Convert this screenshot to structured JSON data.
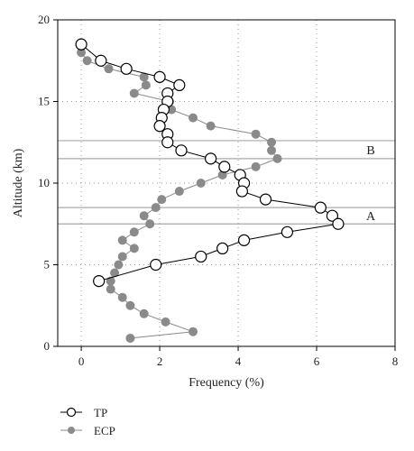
{
  "chart_data": {
    "type": "line",
    "xlabel": "Frequency (%)",
    "ylabel": "Altitude (km)",
    "xlim": [
      -0.6,
      8
    ],
    "ylim": [
      0,
      20
    ],
    "xticks": [
      "0",
      "2",
      "4",
      "6",
      "8"
    ],
    "yticks": [
      "0",
      "5",
      "10",
      "15",
      "20"
    ],
    "grid": "dotted",
    "legend_position": "bottom-left",
    "series": [
      {
        "name": "TP",
        "marker": "open-circle",
        "color": "#000000",
        "points": [
          [
            0.0,
            18.5
          ],
          [
            0.5,
            17.5
          ],
          [
            1.15,
            17.0
          ],
          [
            2.0,
            16.5
          ],
          [
            2.5,
            16.0
          ],
          [
            2.2,
            15.5
          ],
          [
            2.2,
            15.0
          ],
          [
            2.1,
            14.5
          ],
          [
            2.05,
            14.0
          ],
          [
            2.0,
            13.5
          ],
          [
            2.2,
            13.0
          ],
          [
            2.2,
            12.5
          ],
          [
            2.55,
            12.0
          ],
          [
            3.3,
            11.5
          ],
          [
            3.65,
            11.0
          ],
          [
            4.05,
            10.5
          ],
          [
            4.15,
            10.0
          ],
          [
            4.1,
            9.5
          ],
          [
            4.7,
            9.0
          ],
          [
            6.1,
            8.5
          ],
          [
            6.4,
            8.0
          ],
          [
            6.55,
            7.5
          ],
          [
            5.25,
            7.0
          ],
          [
            4.15,
            6.5
          ],
          [
            3.6,
            6.0
          ],
          [
            3.05,
            5.5
          ],
          [
            1.9,
            5.0
          ],
          [
            0.45,
            4.0
          ]
        ]
      },
      {
        "name": "ECP",
        "marker": "filled-circle",
        "color": "#8a8a8a",
        "points": [
          [
            0.0,
            18.0
          ],
          [
            0.15,
            17.5
          ],
          [
            0.7,
            17.0
          ],
          [
            1.6,
            16.5
          ],
          [
            1.65,
            16.0
          ],
          [
            1.35,
            15.5
          ],
          [
            2.25,
            15.0
          ],
          [
            2.3,
            14.5
          ],
          [
            2.85,
            14.0
          ],
          [
            3.3,
            13.5
          ],
          [
            4.45,
            13.0
          ],
          [
            4.85,
            12.5
          ],
          [
            4.85,
            12.0
          ],
          [
            5.0,
            11.5
          ],
          [
            4.45,
            11.0
          ],
          [
            3.6,
            10.5
          ],
          [
            3.05,
            10.0
          ],
          [
            2.5,
            9.5
          ],
          [
            2.05,
            9.0
          ],
          [
            1.9,
            8.5
          ],
          [
            1.6,
            8.0
          ],
          [
            1.75,
            7.5
          ],
          [
            1.35,
            7.0
          ],
          [
            1.05,
            6.5
          ],
          [
            1.35,
            6.0
          ],
          [
            1.05,
            5.5
          ],
          [
            0.95,
            5.0
          ],
          [
            0.85,
            4.5
          ],
          [
            0.75,
            4.0
          ],
          [
            0.75,
            3.5
          ],
          [
            1.05,
            3.0
          ],
          [
            1.25,
            2.5
          ],
          [
            1.6,
            2.0
          ],
          [
            2.15,
            1.5
          ],
          [
            2.85,
            0.9
          ],
          [
            1.25,
            0.5
          ]
        ]
      }
    ],
    "annotations": [
      {
        "label": "B",
        "y_low": 11.5,
        "y_high": 12.6
      },
      {
        "label": "A",
        "y_low": 7.5,
        "y_high": 8.5
      }
    ]
  }
}
